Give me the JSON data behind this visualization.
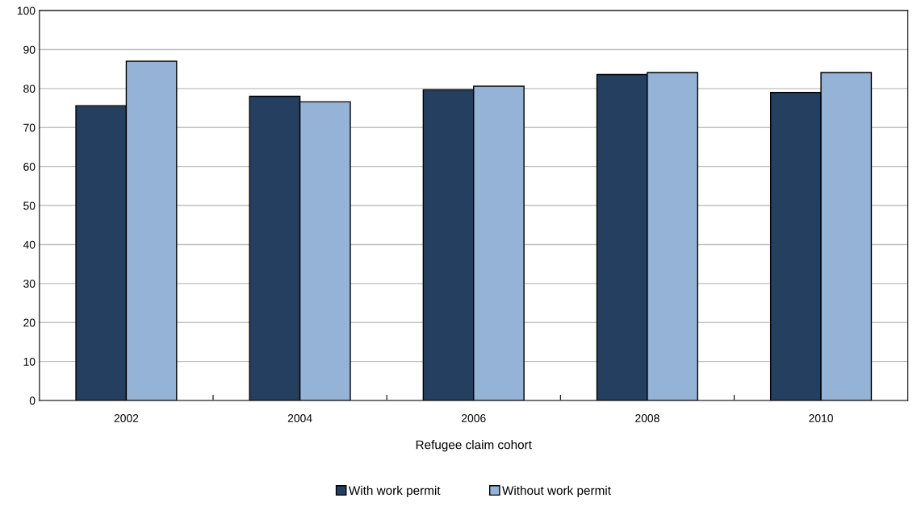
{
  "chart_data": {
    "type": "bar",
    "xlabel": "Refugee claim cohort",
    "categories": [
      "2002",
      "2004",
      "2006",
      "2008",
      "2010"
    ],
    "series": [
      {
        "name": "With work permit",
        "color": "#253f60",
        "values": [
          75.6,
          78.0,
          79.7,
          83.6,
          79.0
        ]
      },
      {
        "name": "Without work permit",
        "color": "#95b3d7",
        "values": [
          87.0,
          76.6,
          80.6,
          84.1,
          84.1
        ]
      }
    ],
    "ylim": [
      0,
      100
    ],
    "yticks": [
      0,
      10,
      20,
      30,
      40,
      50,
      60,
      70,
      80,
      90,
      100
    ],
    "grid": "y",
    "legend": "bottom"
  }
}
